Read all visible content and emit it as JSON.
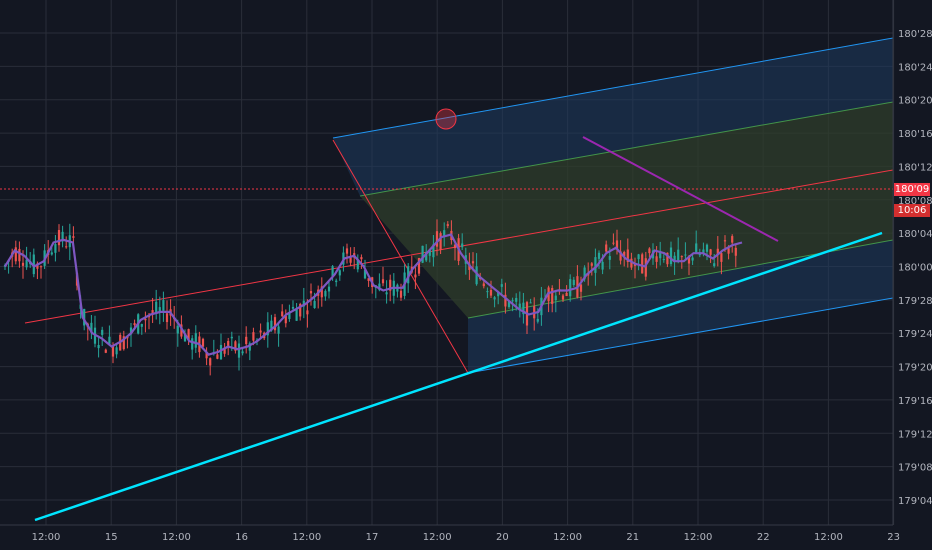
{
  "chart_data": {
    "type": "line",
    "subtype": "candlestick",
    "title": "",
    "xlabel": "",
    "ylabel": "",
    "colors": {
      "background": "#131722",
      "grid": "#2a2e39",
      "candle_up": "#26a69a",
      "candle_down": "#ef5350",
      "moving_average": "#7e57c2",
      "trendline": "#00e5ff",
      "channel_border": "#2196f3",
      "channel_fill": "#1e3a5f",
      "channel_inner_fill": "#2f3d2b",
      "median_line": "#f23645",
      "resistance_line": "#9c27b0",
      "price_line": "#f23645",
      "price_tag": "#f23645"
    },
    "y_axis": {
      "ticks": [
        "180'28",
        "180'24",
        "180'20",
        "180'16",
        "180'12",
        "180'08",
        "180'04",
        "180'00",
        "179'28",
        "179'24",
        "179'20",
        "179'16",
        "179'12",
        "179'08",
        "179'04"
      ],
      "range": [
        "179'02",
        "180'31"
      ],
      "position": "right"
    },
    "x_axis": {
      "ticks": [
        "12:00",
        "15",
        "12:00",
        "16",
        "12:00",
        "17",
        "12:00",
        "20",
        "12:00",
        "21",
        "12:00",
        "22",
        "12:00",
        "23"
      ]
    },
    "current_price": "180'09",
    "countdown": "10:06",
    "ma_values": [
      180.0,
      180.06,
      180.04,
      180.0,
      180.02,
      180.09,
      180.1,
      180.09,
      179.81,
      179.75,
      179.73,
      179.7,
      179.72,
      179.75,
      179.8,
      179.82,
      179.83,
      179.83,
      179.78,
      179.72,
      179.71,
      179.67,
      179.68,
      179.7,
      179.69,
      179.7,
      179.72,
      179.75,
      179.78,
      179.82,
      179.84,
      179.86,
      179.89,
      179.93,
      179.97,
      180.03,
      180.04,
      180.0,
      179.93,
      179.91,
      179.92,
      179.92,
      179.99,
      180.03,
      180.07,
      180.11,
      180.12,
      180.05,
      180.0,
      179.96,
      179.93,
      179.9,
      179.87,
      179.84,
      179.82,
      179.83,
      179.9,
      179.91,
      179.91,
      179.92,
      179.97,
      180.0,
      180.05,
      180.07,
      180.03,
      180.01,
      180.0,
      180.06,
      180.05,
      180.02,
      180.02,
      180.05,
      180.05,
      180.03,
      180.06,
      180.08,
      180.09
    ]
  }
}
